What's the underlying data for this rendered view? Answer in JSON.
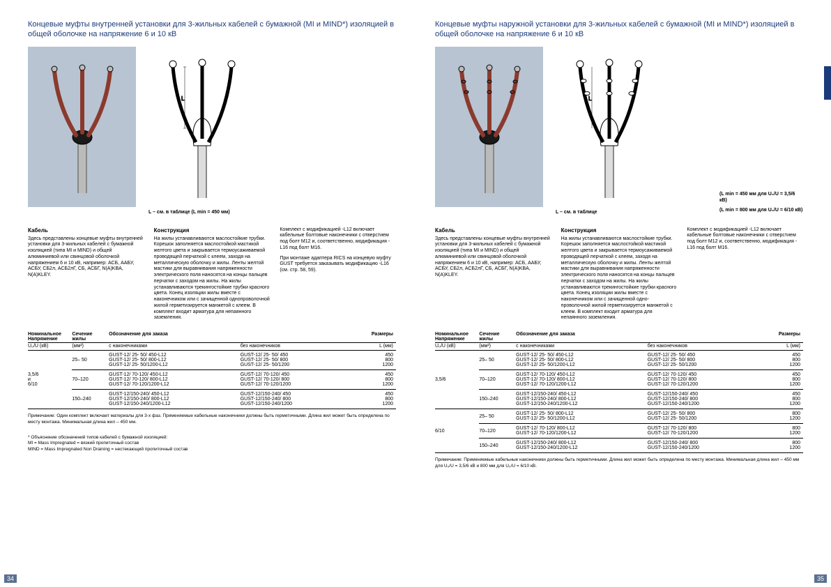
{
  "left": {
    "title": "Концевые муфты внутренней установки для 3-жильных кабелей с бумажной (MI и MIND*) изоляцией в общей оболочке на напряжение 6 и 10 кВ",
    "drawing_caption": "L – см. в таблице (L min = 450 мм)",
    "cable_h": "Кабель",
    "cable_t": "Здесь представлены концевые муфты внутренней установки для 3-жильных кабелей с бумажной изоляцией (типа MI и MIND) и общей алюминиевой или свинцовой оболочкой напряжением 6 и 10 кВ, например: АСБ, ААБУ, АСБУ, СБ2л, АСБ2лГ, СБ, АСБГ, N(A)KBA, N(A)KLEY.",
    "constr_h": "Конструкция",
    "constr_t": "На жилы устанавливаются маслостойкие трубки. Корешок заполняется маслостойкой мастикой желтого цвета и закрывается термоусаживаемой проводящей перчаткой с клеем, заходя на металлическую оболочку и жилы. Ленты желтой мастики для выравнивания напряженности электрического поля наносятся на концы пальцев перчатки с заходом на жилы. На жилы устанавливаются трекингостойкие трубки красного цвета. Конец изоляции жилы вместе с наконечником или с зачищенной однопроволочной жилой герметизируется манжетой с клеем. В комплект входит арматура для непаянного заземления.",
    "kit_t1": "Комплект с модификацией -L12 включает кабельные болтовые наконечники с отверстием под болт M12 и, соответственно, модификация -L16 под болт M16.",
    "kit_t2": "При монтаже адаптера RICS на концевую муфту GUST требуется заказывать модификацию -L16 (см. стр. 58, 59).",
    "th_nom": "Номинальное Напряжение",
    "th_nom2": "U₀/U (кВ)",
    "th_sec": "Сечение жилы",
    "th_sec2": "(мм²)",
    "th_ord": "Обозначение для заказа",
    "th_with": "с наконечниками",
    "th_without": "без наконечников",
    "th_dim": "Размеры",
    "th_l": "L (мм)",
    "groups": [
      {
        "volt": "3,5/6\nи\n6/10",
        "rows": [
          {
            "sec": "25– 50",
            "w": [
              "GUST-12/ 25- 50/ 450-L12",
              "GUST-12/ 25- 50/ 800-L12",
              "GUST-12/ 25- 50/1200-L12"
            ],
            "wo": [
              "GUST-12/ 25- 50/ 450",
              "GUST-12/ 25- 50/ 800",
              "GUST-12/ 25- 50/1200"
            ],
            "l": [
              "450",
              "800",
              "1200"
            ]
          },
          {
            "sec": "70–120",
            "w": [
              "GUST-12/ 70-120/ 450-L12",
              "GUST-12/ 70-120/ 800-L12",
              "GUST-12/ 70-120/1200-L12"
            ],
            "wo": [
              "GUST-12/ 70-120/ 450",
              "GUST-12/ 70-120/ 800",
              "GUST-12/ 70-120/1200"
            ],
            "l": [
              "450",
              "800",
              "1200"
            ]
          },
          {
            "sec": "150–240",
            "w": [
              "GUST-12/150-240/ 450-L12",
              "GUST-12/150-240/ 800-L12",
              "GUST-12/150-240/1200-L12"
            ],
            "wo": [
              "GUST-12/150-240/ 450",
              "GUST-12/150-240/ 800",
              "GUST-12/150-240/1200"
            ],
            "l": [
              "450",
              "800",
              "1200"
            ]
          }
        ]
      }
    ],
    "note": "Примечание: Один комплект включает материалы для 3-х фаз. Применяемые кабельные наконечники должны быть герметичными. Длина жил может быть определена по месту монтажа. Минимальная длина жил – 450 мм.",
    "footnote": "* Объяснение обозначений типов кабелей с бумажной изоляцией:\nMI = Mass Impregnated = вязкий пропиточный состав\nMIND = Mass Impregnated Non Draining = нестекающий пропиточный состав",
    "pnum": "34"
  },
  "right": {
    "title": "Концевые муфты наружной установки для 3-жильных кабелей с бумажной (MI и MIND*) изоляцией в общей оболочке на напряжение 6 и 10 кВ",
    "drawing_caption": "L – см. в таблице",
    "right_note1": "(L min = 450 мм для U₀/U = 3,5/6 кВ)",
    "right_note2": "(L min = 800 мм для U₀/U = 6/10 кВ)",
    "cable_h": "Кабель",
    "cable_t": "Здесь представлены концевые муфты внутренней установки для 3-жильных кабелей с бумажной изоляцией (типа MI и MIND) и общей алюминиевой или свинцовой оболочкой напряжением 6 и 10 кВ, например: АСБ, ААБУ, АСБУ, СБ2л, АСБ2лГ, СБ, АСБГ, N(A)KBA, N(A)KLEY.",
    "constr_h": "Конструкция",
    "constr_t": "На жилы устанавливаются маслостойкие трубки. Корешок заполняется маслостойкой мастикой желтого цвета и закрывается термоусаживаемой проводящей перчаткой с клеем, заходя на металлическую оболочку и жилы. Ленты желтой мастики для выравнивания напряженности электрического поля наносятся на концы пальцев перчатки с заходом на жилы. На жилы устанавливаются трекингостойкие трубки красного цвета. Конец изоляции жилы вместе с наконечником или с зачищенной одно-проволочной жилой герметизируется манжетой с клеем. В комплект входит арматура для непаянного заземления.",
    "kit_t1": "Комплект с модификацией -L12 включает кабельные болтовые наконечники с отверстием под болт M12 и, соответственно, модификация -L16 под болт M16.",
    "groups": [
      {
        "volt": "3,5/6",
        "rows": [
          {
            "sec": "25– 50",
            "w": [
              "GUST-12/ 25- 50/ 450-L12",
              "GUST-12/ 25- 50/ 800-L12",
              "GUST-12/ 25- 50/1200-L12"
            ],
            "wo": [
              "GUST-12/ 25- 50/ 450",
              "GUST-12/ 25- 50/ 800",
              "GUST-12/ 25- 50/1200"
            ],
            "l": [
              "450",
              "800",
              "1200"
            ]
          },
          {
            "sec": "70–120",
            "w": [
              "GUST-12/ 70-120/ 450-L12",
              "GUST-12/ 70-120/ 800-L12",
              "GUST-12/ 70-120/1200-L12"
            ],
            "wo": [
              "GUST-12/ 70-120/ 450",
              "GUST-12/ 70-120/ 800",
              "GUST-12/ 70-120/1200"
            ],
            "l": [
              "450",
              "800",
              "1200"
            ]
          },
          {
            "sec": "150–240",
            "w": [
              "GUST-12/150-240/ 450-L12",
              "GUST-12/150-240/ 800-L12",
              "GUST-12/150-240/1200-L12"
            ],
            "wo": [
              "GUST-12/150-240/ 450",
              "GUST-12/150-240/ 800",
              "GUST-12/150-240/1200"
            ],
            "l": [
              "450",
              "800",
              "1200"
            ]
          }
        ]
      },
      {
        "volt": "6/10",
        "rows": [
          {
            "sec": "25– 50",
            "w": [
              "GUST-12/ 25- 50/ 800-L12",
              "GUST-12/ 25- 50/1200-L12"
            ],
            "wo": [
              "GUST-12/ 25- 50/ 800",
              "GUST-12/ 25- 50/1200"
            ],
            "l": [
              "800",
              "1200"
            ]
          },
          {
            "sec": "70–120",
            "w": [
              "GUST-12/ 70-120/ 800-L12",
              "GUST-12/ 70-120/1200-L12"
            ],
            "wo": [
              "GUST-12/ 70-120/ 800",
              "GUST-12/ 70-120/1200"
            ],
            "l": [
              "800",
              "1200"
            ]
          },
          {
            "sec": "150–240",
            "w": [
              "GUST-12/150-240/ 800-L12",
              "GUST-12/150-240/1200-L12"
            ],
            "wo": [
              "GUST-12/150-240/ 800",
              "GUST-12/150-240/1200"
            ],
            "l": [
              "800",
              "1200"
            ]
          }
        ]
      }
    ],
    "note": "Примечание: Применяемые кабельные наконечники должны быть герметичными. Длина жил может быть определена по месту монтажа. Минимальная длина жил – 450 мм для U₀/U = 3,5/6 кВ и 800 мм для U₀/U = 6/10 кВ.",
    "pnum": "35"
  }
}
